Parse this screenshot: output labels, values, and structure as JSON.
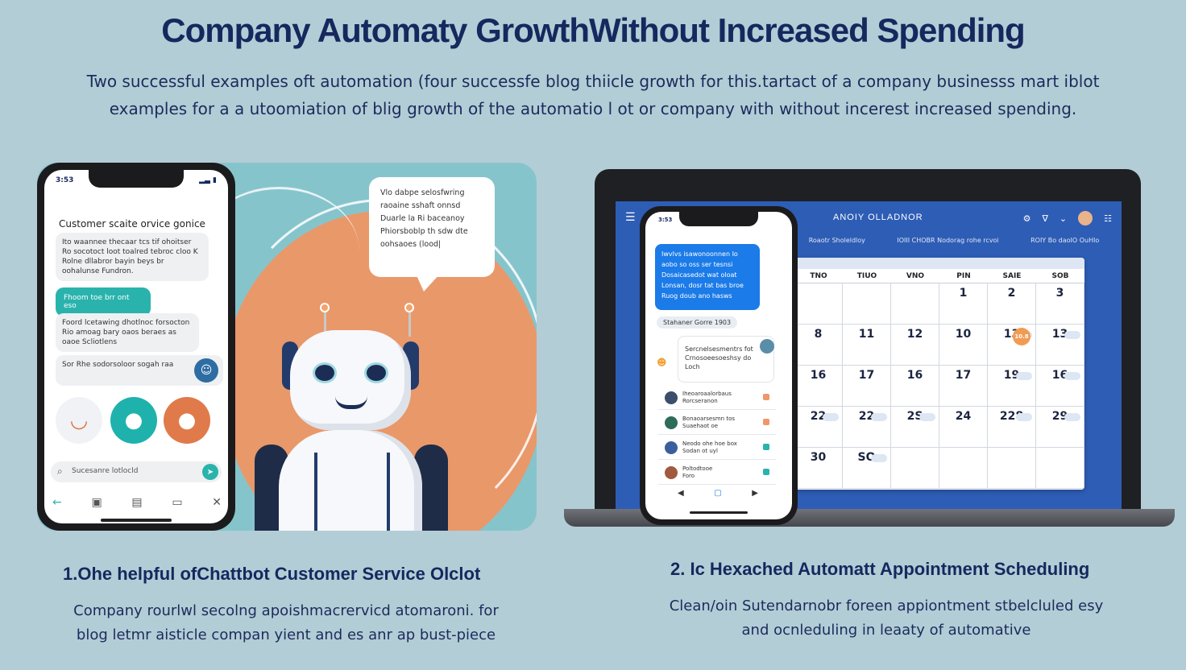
{
  "header": {
    "title": "Company Automaty GrowthWithout Increased Spending",
    "subtitle_line1": "Two successful examples oft automation (four successfe blog thiicle growth for this.tartact of a company businesss mart iblot",
    "subtitle_line2": "examples for a a utoomiation of blig growth of the automatio l ot or company with without incerest increased spending."
  },
  "left": {
    "phone": {
      "time": "3:53",
      "status": "▂▃ ▮",
      "header": "Customer scaite orvice gonice",
      "bubble1": "Ito waannee thecaar tcs tif ohoitser Ro socotoct loot toalred tebroc cloo K Rolne dllabror bayin beys br oohalunse Fundron.",
      "teal_reply": "Fhoom toe brr ont eso",
      "bubble2": "Foord lcetawing dhotlnoc forsocton Rio amoag bary oaos beraes as oaoe Scliotlens",
      "bubble3": "Sor Rhe sodorsoloor sogah raa",
      "search_placeholder": "Sucesanre lotlocld"
    },
    "speech": "Vlo dabpe selosfwring raoaine sshaft onnsd Duarle la Ri baceanoy Phiorsboblp th sdw dte oohsaoes (lood|",
    "caption_title": "1.Ohe helpful ofChattbot Customer Service Olclot",
    "caption_line1": "Company rourlwl secolng apoishmacrervicd atomaroni. for",
    "caption_line2": "blog letmr aisticle compan yient and es anr ap bust-piece"
  },
  "right": {
    "app_title": "ANOIY OLLADNOR",
    "header_labels": [
      "Roaotr Sholeldloy",
      "IOIII CHOBR Nodorag rohe rcvoi",
      "ROIY Bo daoIO OuHlo"
    ],
    "days": [
      "TNO",
      "TIUO",
      "VNO",
      "PIN",
      "SAIE",
      "SOB"
    ],
    "weeks": [
      [
        "",
        "",
        "",
        "1",
        "2",
        "3"
      ],
      [
        "8",
        "11",
        "12",
        "10",
        "13",
        "13"
      ],
      [
        "16",
        "17",
        "16",
        "17",
        "19",
        "16"
      ],
      [
        "22",
        "22",
        "2S",
        "24",
        "228",
        "29"
      ],
      [
        "30",
        "SO",
        "",
        "",
        "",
        ""
      ]
    ],
    "highlight_text": "10.8",
    "phone": {
      "time": "3:53",
      "blue_bubble": "Iwvlvs isawonoonnen Io aobo so oss ser tesnsi Dosaicasedot wat oloat Lonsan, dosr tat bas broe Ruog doub ano hasws",
      "pill": "Stahaner Gorre 1903",
      "card": "Sercnelsesmentrs fot Crnosoeesoeshsy do Loch",
      "rows": [
        {
          "line1": "Iheoaroaalorbaus",
          "line2": "Rorcseranon"
        },
        {
          "line1": "Bonaoarsesmn tos",
          "line2": "Suaehaot oe"
        },
        {
          "line1": "Neodo ohe hoe box",
          "line2": "Sodan ot uyl"
        },
        {
          "line1": "Poltodtooe",
          "line2": "Foro"
        }
      ]
    },
    "caption_title": "2. Ic Hexached Automatt Appointment Scheduling",
    "caption_line1": "Clean/oin Sutendarnobr foreen appiontment stbelcluled esy",
    "caption_line2": "and ocnleduling in leaaty of automative"
  },
  "colors": {
    "background": "#b3cdd6",
    "navy": "#16285e",
    "teal": "#2ab3ad",
    "orange": "#e9986a",
    "calendar_blue": "#2e5db5",
    "message_blue": "#1b7be8"
  }
}
